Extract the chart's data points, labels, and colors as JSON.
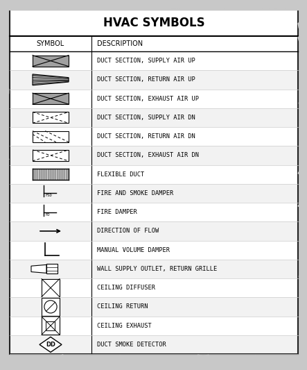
{
  "title": "HVAC SYMBOLS",
  "header_col1": "SYMBOL",
  "header_col2": "DESCRIPTION",
  "rows": [
    "DUCT SECTION, SUPPLY AIR UP",
    "DUCT SECTION, RETURN AIR UP",
    "DUCT SECTION, EXHAUST AIR UP",
    "DUCT SECTION, SUPPLY AIR DN",
    "DUCT SECTION, RETURN AIR DN",
    "DUCT SECTION, EXHAUST AIR DN",
    "FLEXIBLE DUCT",
    "FIRE AND SMOKE DAMPER",
    "FIRE DAMPER",
    "DIRECTION OF FLOW",
    "MANUAL VOLUME DAMPER",
    "WALL SUPPLY OUTLET, RETURN GRILLE",
    "CEILING DIFFUSER",
    "CEILING RETURN",
    "CEILING EXHAUST",
    "DUCT SMOKE DETECTOR"
  ],
  "fig_w": 4.43,
  "fig_h": 5.33,
  "dpi": 100,
  "bg_color": "#c8c8c8",
  "table_bg": "#ffffff",
  "row_alt1": "#ffffff",
  "row_alt2": "#f2f2f2",
  "border_color": "#222222",
  "text_color": "#000000",
  "gray_fill": "#a0a0a0",
  "title_fontsize": 12,
  "desc_fontsize": 6.2,
  "header_fontsize": 7
}
